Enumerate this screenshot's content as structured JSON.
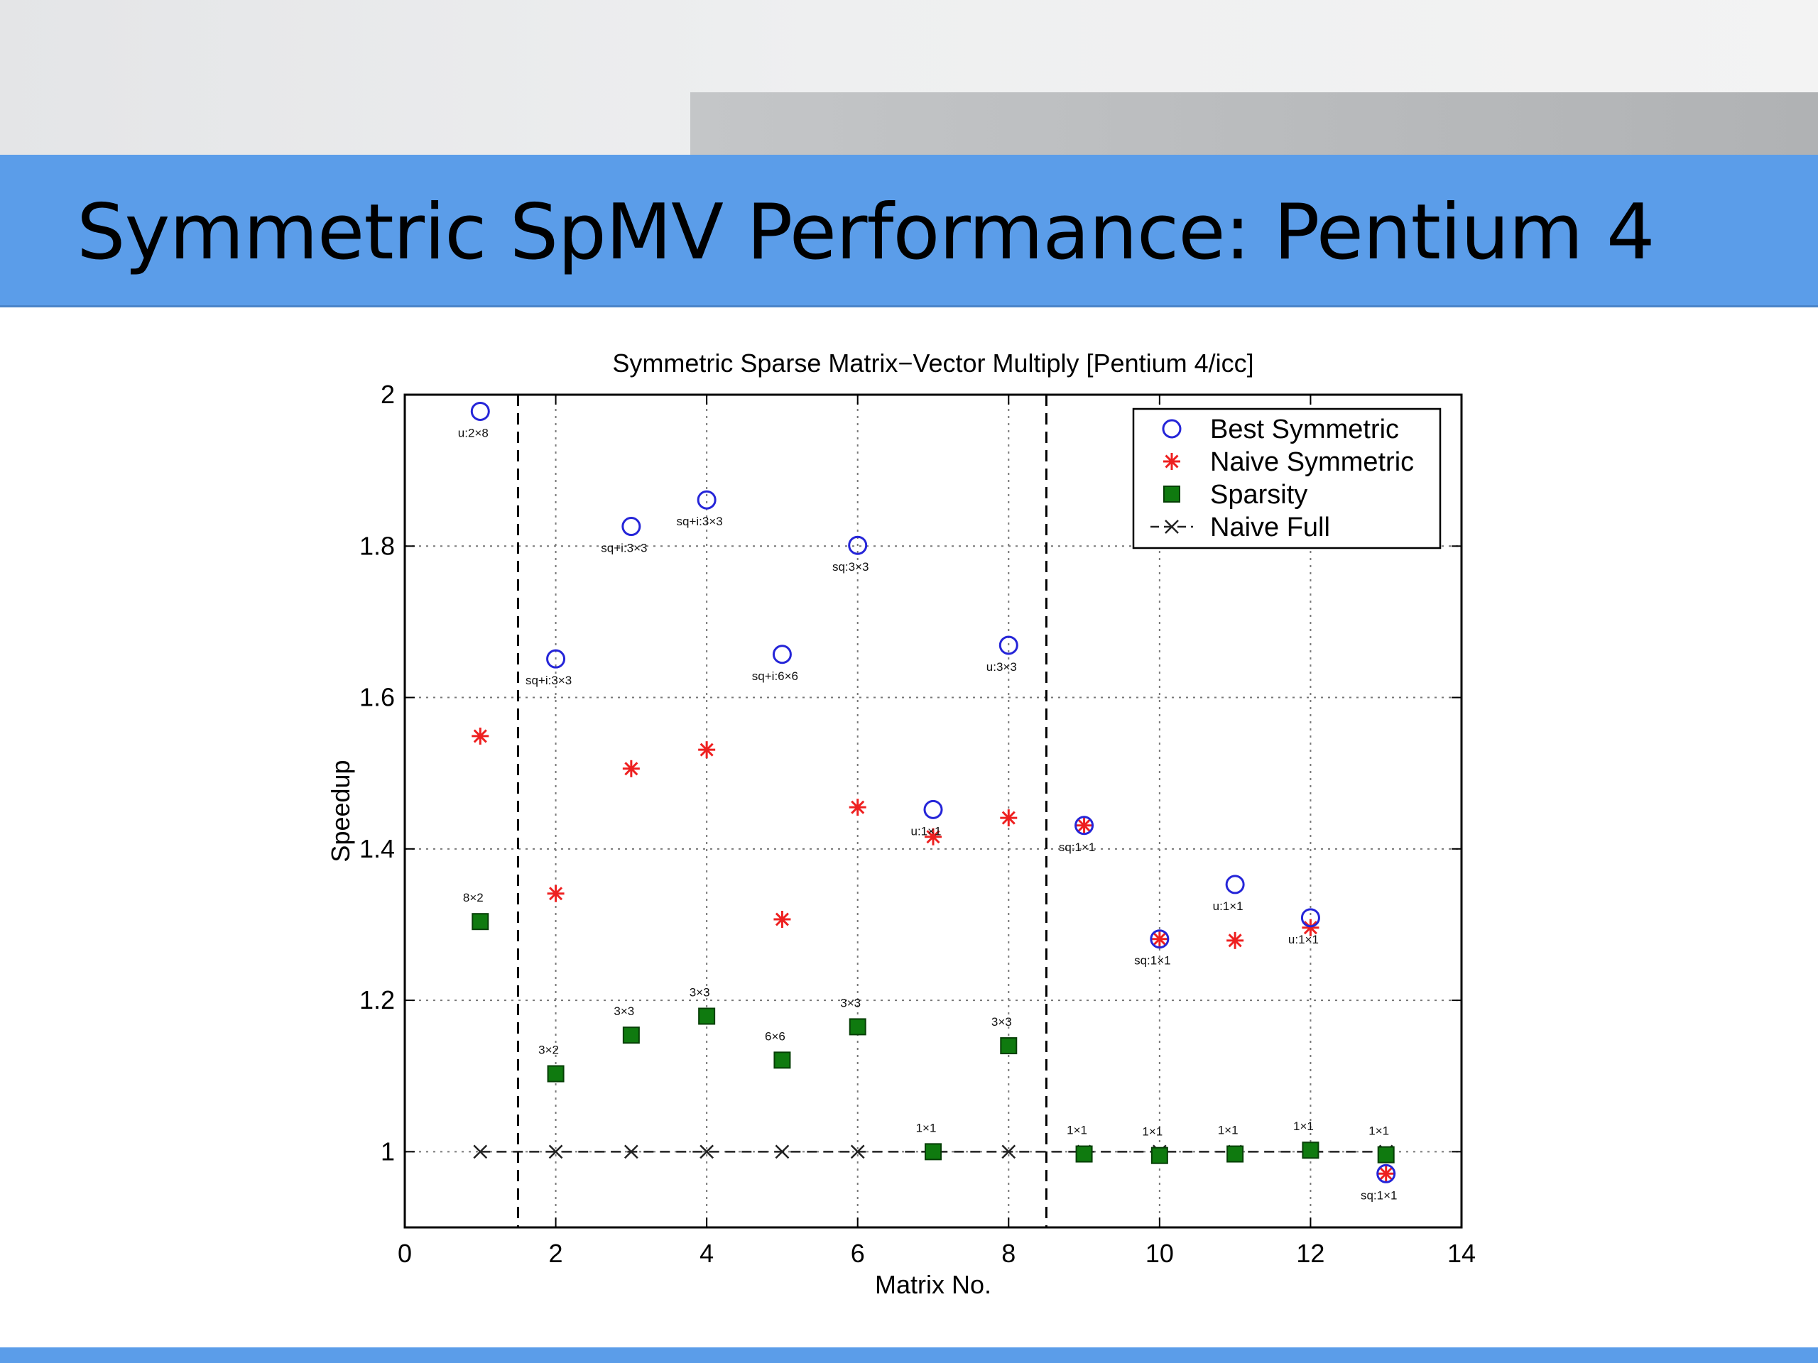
{
  "slide": {
    "title": "Symmetric SpMV Performance: Pentium 4",
    "accent_color": "#5b9de9"
  },
  "chart_data": {
    "type": "scatter",
    "title": "Symmetric Sparse Matrix−Vector Multiply [Pentium 4/icc]",
    "xlabel": "Matrix No.",
    "ylabel": "Speedup",
    "xlim": [
      0,
      14
    ],
    "ylim": [
      0.9,
      2
    ],
    "xticks": [
      "0",
      "2",
      "4",
      "6",
      "8",
      "10",
      "12",
      "14"
    ],
    "yticks": [
      "1",
      "1.2",
      "1.4",
      "1.6",
      "1.8",
      "2"
    ],
    "grid": true,
    "legend_position": "top-right",
    "vertical_dividers": [
      1.5,
      8.5
    ],
    "series": [
      {
        "name": "Best Symmetric",
        "marker": "circle",
        "color": "#2525d8",
        "x": [
          1,
          2,
          3,
          4,
          5,
          6,
          7,
          8,
          9,
          10,
          11,
          12,
          13
        ],
        "values": [
          1.978,
          1.651,
          1.826,
          1.861,
          1.657,
          1.801,
          1.452,
          1.669,
          1.431,
          1.281,
          1.353,
          1.309,
          0.971
        ],
        "labels": [
          "u:2×8",
          "sq+i:3×3",
          "sq+i:3×3",
          "sq+i:3×3",
          "sq+i:6×6",
          "sq:3×3",
          "u:1×1",
          "u:3×3",
          "sq:1×1",
          "sq:1×1",
          "u:1×1",
          "u:1×1",
          "sq:1×1"
        ]
      },
      {
        "name": "Naive Symmetric",
        "marker": "star",
        "color": "#ee2020",
        "x": [
          1,
          2,
          3,
          4,
          5,
          6,
          7,
          8,
          9,
          10,
          11,
          12,
          13
        ],
        "values": [
          1.549,
          1.341,
          1.506,
          1.531,
          1.307,
          1.455,
          1.416,
          1.441,
          1.431,
          1.281,
          1.279,
          1.296,
          0.971
        ]
      },
      {
        "name": "Sparsity",
        "marker": "square",
        "color": "#0f7a0f",
        "x": [
          1,
          2,
          3,
          4,
          5,
          6,
          7,
          8,
          9,
          10,
          11,
          12,
          13
        ],
        "values": [
          1.304,
          1.103,
          1.154,
          1.179,
          1.121,
          1.165,
          1.0,
          1.14,
          0.997,
          0.995,
          0.997,
          1.002,
          0.996
        ],
        "labels": [
          "8×2",
          "3×2",
          "3×3",
          "3×3",
          "6×6",
          "3×3",
          "1×1",
          "3×3",
          "1×1",
          "1×1",
          "1×1",
          "1×1",
          "1×1"
        ]
      },
      {
        "name": "Naive Full",
        "marker": "x",
        "line": "dashed",
        "color": "#222222",
        "x": [
          1,
          2,
          3,
          4,
          5,
          6,
          7,
          8,
          9,
          10,
          11,
          12,
          13
        ],
        "values": [
          1,
          1,
          1,
          1,
          1,
          1,
          1,
          1,
          1,
          1,
          1,
          1,
          1
        ]
      }
    ]
  }
}
